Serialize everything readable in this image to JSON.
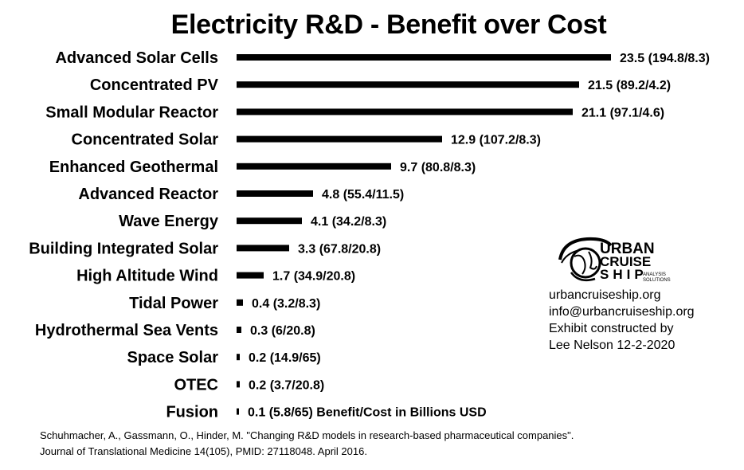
{
  "title": "Electricity R&D - Benefit over Cost",
  "chart_data": {
    "type": "bar",
    "orientation": "horizontal",
    "title": "Electricity R&D - Benefit over Cost",
    "categories": [
      "Advanced Solar Cells",
      "Concentrated PV",
      "Small Modular Reactor",
      "Concentrated Solar",
      "Enhanced Geothermal",
      "Advanced Reactor",
      "Wave Energy",
      "Building Integrated Solar",
      "High Altitude Wind",
      "Tidal Power",
      "Hydrothermal Sea Vents",
      "Space Solar",
      "OTEC",
      "Fusion"
    ],
    "values": [
      23.5,
      21.5,
      21.1,
      12.9,
      9.7,
      4.8,
      4.1,
      3.3,
      1.7,
      0.4,
      0.3,
      0.2,
      0.2,
      0.1
    ],
    "data_labels": [
      "23.5 (194.8/8.3)",
      "21.5 (89.2/4.2)",
      "21.1 (97.1/4.6)",
      "12.9 (107.2/8.3)",
      "9.7 (80.8/8.3)",
      "4.8 (55.4/11.5)",
      "4.1 (34.2/8.3)",
      "3.3 (67.8/20.8)",
      "1.7 (34.9/20.8)",
      "0.4 (3.2/8.3)",
      "0.3 (6/20.8)",
      "0.2 (14.9/65)",
      "0.2 (3.7/20.8)",
      "0.1 (5.8/65) Benefit/Cost in Billions USD"
    ],
    "bar_color": "#000000",
    "xlim": [
      0,
      23.5
    ],
    "grid": false,
    "legend": "none"
  },
  "logo": {
    "line1": "URBAN",
    "line2": "CRUISE",
    "line3": "SHIP",
    "tag1": "ANALYSIS",
    "tag2": "SOLUTIONS"
  },
  "info": {
    "website": "urbancruiseship.org",
    "email": "info@urbancruiseship.org",
    "credit_line1": "Exhibit constructed by",
    "credit_line2": "Lee Nelson 12-2-2020"
  },
  "citation": {
    "line1": "Schuhmacher, A., Gassmann, O., Hinder, M. \"Changing R&D models in research-based pharmaceutical companies\".",
    "line2": "Journal of Translational Medicine 14(105), PMID: 27118048. April 2016."
  }
}
